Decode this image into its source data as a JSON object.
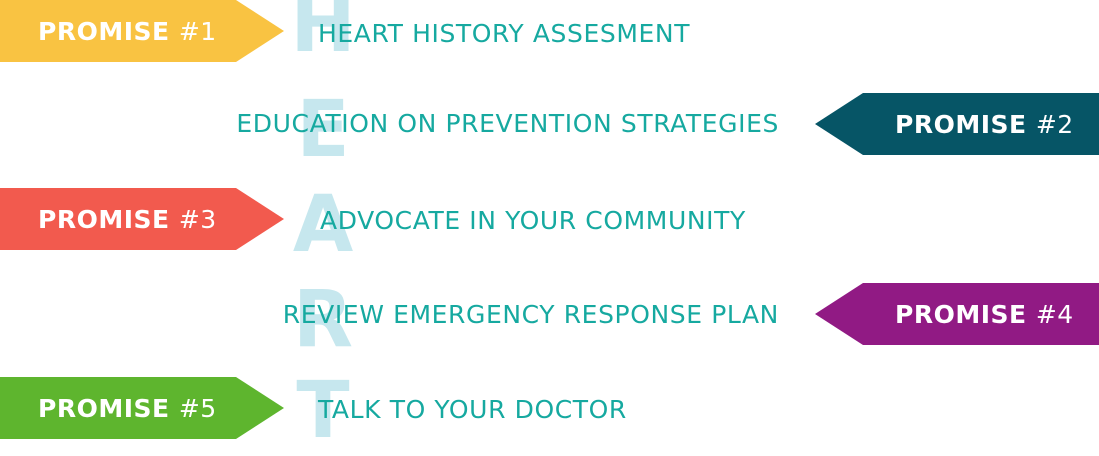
{
  "heart_letters": [
    "H",
    "E",
    "A",
    "R",
    "T"
  ],
  "promises": [
    {
      "label_word": "PROMISE",
      "label_number": "#1",
      "description": "HEART HISTORY ASSESMENT",
      "color": "#f9c342"
    },
    {
      "label_word": "PROMISE",
      "label_number": "#2",
      "description": "EDUCATION ON PREVENTION STRATEGIES",
      "color": "#065566"
    },
    {
      "label_word": "PROMISE",
      "label_number": "#3",
      "description": "ADVOCATE IN YOUR COMMUNITY",
      "color": "#f25a4e"
    },
    {
      "label_word": "PROMISE",
      "label_number": "#4",
      "description": "REVIEW EMERGENCY RESPONSE PLAN",
      "color": "#911a84"
    },
    {
      "label_word": "PROMISE",
      "label_number": "#5",
      "description": "TALK TO YOUR DOCTOR",
      "color": "#5eb52e"
    }
  ],
  "colors": {
    "description_text": "#16a9a0",
    "heart_letters": "#c6e7ee"
  }
}
